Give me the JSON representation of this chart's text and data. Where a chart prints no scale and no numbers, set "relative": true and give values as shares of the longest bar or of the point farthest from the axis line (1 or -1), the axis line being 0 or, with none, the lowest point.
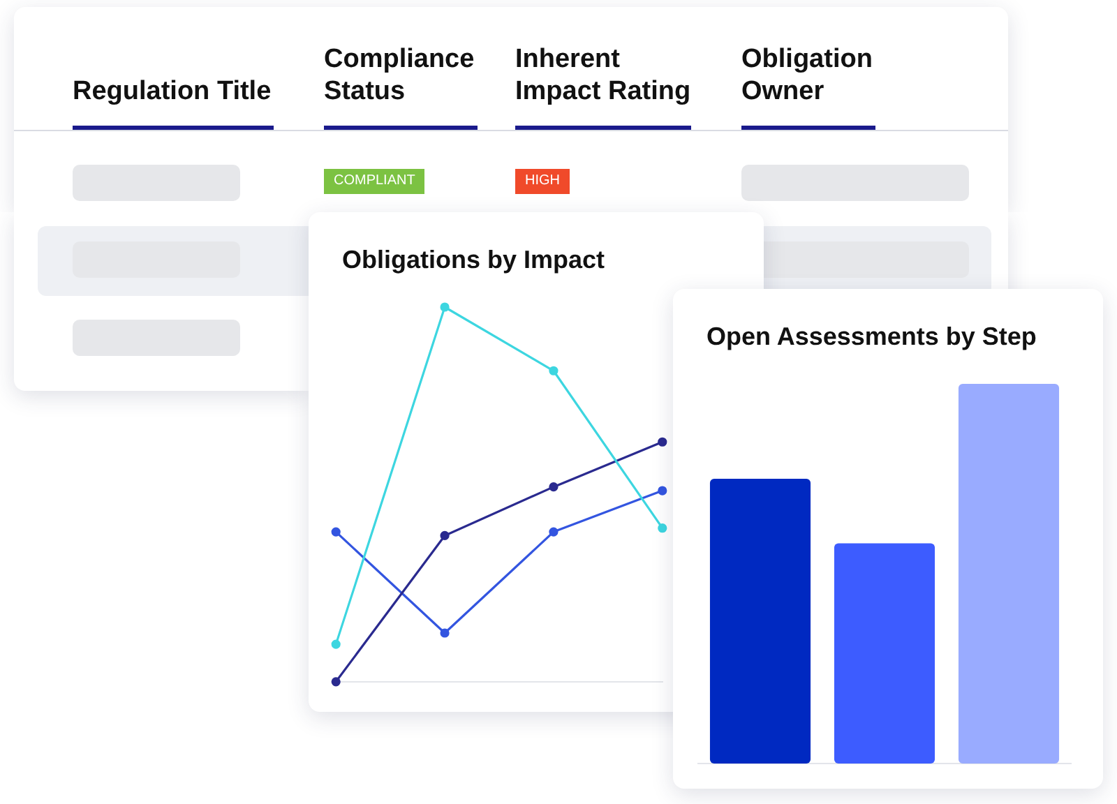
{
  "chart_data": [
    {
      "type": "line",
      "title": "Obligations by Impact",
      "relative": true,
      "categories": [
        null,
        null,
        null,
        null
      ],
      "marker": "circle",
      "legend": false,
      "series": [
        {
          "color": "#3dd6e0",
          "values": [
            0.1,
            1,
            0.83,
            0.41
          ]
        },
        {
          "color": "#2a2a8f",
          "values": [
            0,
            0.39,
            0.52,
            0.64
          ]
        },
        {
          "color": "#3355e0",
          "values": [
            0.4,
            0.13,
            0.4,
            0.51
          ]
        }
      ]
    },
    {
      "type": "bar",
      "title": "Open Assessments by Step",
      "relative": true,
      "categories": [
        null,
        null,
        null
      ],
      "values": [
        0.75,
        0.58,
        1
      ],
      "colors": [
        "#0029c1",
        "#3d5cff",
        "#99abff"
      ],
      "legend": false
    },
    {
      "type": "other",
      "categories": [
        "Regulation Title",
        "Compliance Status",
        "Inherent Impact Rating",
        "Obligation Owner"
      ],
      "annotations": [
        "COMPLIANT",
        "HIGH"
      ]
    }
  ]
}
